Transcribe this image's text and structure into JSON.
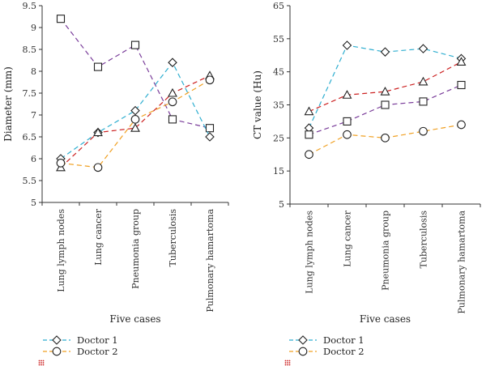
{
  "colors": {
    "purple": "#7a3d9a",
    "cyan": "#2eaed0",
    "red": "#cc2222",
    "orange": "#f0a022",
    "axis": "#333333"
  },
  "chart_data": [
    {
      "type": "line",
      "categories": [
        "Lung lymph nodes",
        "Lung cancer",
        "Pneumonia group",
        "Tuberculosis",
        "Pulmonary hamartoma"
      ],
      "xlabel": "Five cases",
      "ylabel": "Diameter (mm)",
      "ylim": [
        5,
        9.5
      ],
      "yticks": [
        "5",
        "5.5",
        "6",
        "6.5",
        "7",
        "7.5",
        "8",
        "8.5",
        "9",
        "9.5"
      ],
      "series": [
        {
          "name": "series-purple",
          "color": "purple",
          "marker": "square",
          "values": [
            9.2,
            8.1,
            8.6,
            6.9,
            6.7
          ]
        },
        {
          "name": "series-cyan",
          "color": "cyan",
          "marker": "diamond",
          "values": [
            6.0,
            6.6,
            7.1,
            8.2,
            6.5
          ]
        },
        {
          "name": "series-red",
          "color": "red",
          "marker": "triangle",
          "values": [
            5.8,
            6.6,
            6.7,
            7.5,
            7.9
          ]
        },
        {
          "name": "series-orange",
          "color": "orange",
          "marker": "circle",
          "values": [
            5.9,
            5.8,
            6.9,
            7.3,
            7.8
          ]
        }
      ]
    },
    {
      "type": "line",
      "categories": [
        "Lung lymph nodes",
        "Lung cancer",
        "Pneumonia group",
        "Tuberculosis",
        "Pulmonary hamartoma"
      ],
      "xlabel": "Five cases",
      "ylabel": "CT value (Hu)",
      "ylim": [
        5,
        65
      ],
      "yticks": [
        "5",
        "15",
        "25",
        "35",
        "45",
        "55",
        "65"
      ],
      "series": [
        {
          "name": "series-cyan",
          "color": "cyan",
          "marker": "diamond",
          "values": [
            28,
            53,
            51,
            52,
            49
          ]
        },
        {
          "name": "series-red",
          "color": "red",
          "marker": "triangle",
          "values": [
            33,
            38,
            39,
            42,
            48
          ]
        },
        {
          "name": "series-purple",
          "color": "purple",
          "marker": "square",
          "values": [
            26,
            30,
            35,
            36,
            41
          ]
        },
        {
          "name": "series-orange",
          "color": "orange",
          "marker": "circle",
          "values": [
            20,
            26,
            25,
            27,
            29
          ]
        }
      ]
    }
  ],
  "legend": [
    {
      "label": "Doctor 1",
      "color": "cyan",
      "marker": "diamond"
    },
    {
      "label": "Doctor 2",
      "color": "orange",
      "marker": "circle"
    },
    {
      "label": "",
      "color": "red",
      "marker": "dots"
    }
  ]
}
